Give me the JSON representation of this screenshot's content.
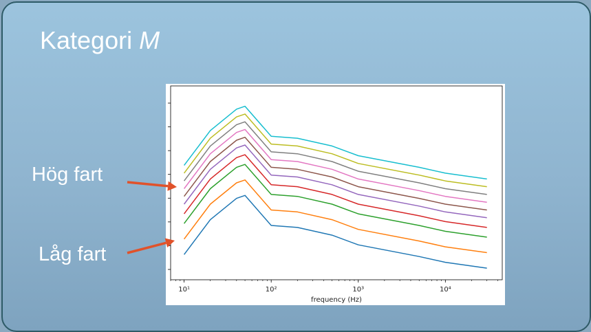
{
  "slide": {
    "title_prefix": "Kategori",
    "title_italic": "M",
    "label_high": "Hög fart",
    "label_low": "Låg fart",
    "arrow_color": "#e0522a",
    "arrow_icon": "arrow-right-icon"
  },
  "chart_data": {
    "type": "line",
    "title": "",
    "xlabel": "frequency (Hz)",
    "ylabel": "",
    "xscale": "log",
    "xlim": [
      7,
      45000
    ],
    "ylim": [
      0,
      100
    ],
    "x_ticks": [
      10,
      100,
      1000,
      10000
    ],
    "x_tick_labels": [
      "10¹",
      "10²",
      "10³",
      "10⁴"
    ],
    "y_tick_count": 8,
    "grid": false,
    "legend": "none",
    "x": [
      10,
      20,
      40,
      50,
      100,
      200,
      500,
      1000,
      5000,
      10000,
      30000
    ],
    "series": [
      {
        "color": "#1f77b4",
        "values": [
          13.0,
          31.0,
          42.0,
          43.5,
          28.0,
          27.0,
          23.0,
          18.0,
          12.0,
          9.0,
          6.0
        ]
      },
      {
        "color": "#ff7f0e",
        "values": [
          21.0,
          39.0,
          50.0,
          51.5,
          36.0,
          35.0,
          31.0,
          26.0,
          20.0,
          17.0,
          14.0
        ]
      },
      {
        "color": "#2ca02c",
        "values": [
          29.0,
          47.0,
          58.0,
          59.5,
          44.0,
          43.0,
          39.0,
          34.0,
          28.0,
          25.0,
          22.0
        ]
      },
      {
        "color": "#d62728",
        "values": [
          34.0,
          52.0,
          63.0,
          64.5,
          49.0,
          48.0,
          44.0,
          39.0,
          33.0,
          30.0,
          27.0
        ]
      },
      {
        "color": "#9467bd",
        "values": [
          39.0,
          57.0,
          68.0,
          69.5,
          54.0,
          53.0,
          49.0,
          44.0,
          38.0,
          35.0,
          32.0
        ]
      },
      {
        "color": "#8c564b",
        "values": [
          43.0,
          61.0,
          72.0,
          73.5,
          58.0,
          57.0,
          53.0,
          48.0,
          42.0,
          39.0,
          36.0
        ]
      },
      {
        "color": "#e377c2",
        "values": [
          47.0,
          65.0,
          76.0,
          77.5,
          62.0,
          61.0,
          57.0,
          52.0,
          46.0,
          43.0,
          40.0
        ]
      },
      {
        "color": "#7f7f7f",
        "values": [
          51.0,
          69.0,
          80.0,
          81.5,
          66.0,
          65.0,
          61.0,
          56.0,
          50.0,
          47.0,
          44.0
        ]
      },
      {
        "color": "#bcbd22",
        "values": [
          55.0,
          73.0,
          84.0,
          85.5,
          70.0,
          69.0,
          65.0,
          60.0,
          54.0,
          51.0,
          48.0
        ]
      },
      {
        "color": "#17becf",
        "values": [
          59.0,
          77.0,
          88.0,
          89.5,
          74.0,
          73.0,
          69.0,
          64.0,
          58.0,
          55.0,
          52.0
        ]
      }
    ]
  }
}
